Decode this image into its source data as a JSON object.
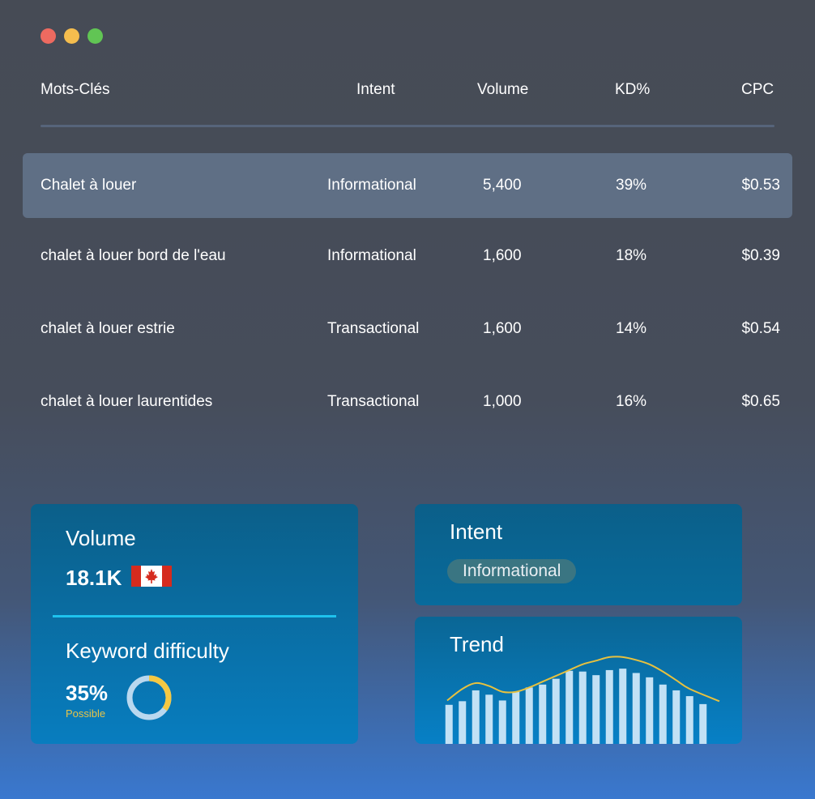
{
  "window": {
    "dots": [
      {
        "name": "close-dot",
        "color": "#ed6a60"
      },
      {
        "name": "minimize-dot",
        "color": "#f5bd4e"
      },
      {
        "name": "maximize-dot",
        "color": "#61c554"
      }
    ]
  },
  "table": {
    "headers": {
      "keyword": "Mots-Clés",
      "intent": "Intent",
      "volume": "Volume",
      "kd": "KD%",
      "cpc": "CPC"
    },
    "rows": [
      {
        "keyword": "Chalet à louer",
        "intent": "Informational",
        "volume": "5,400",
        "kd": "39%",
        "cpc": "$0.53",
        "selected": true
      },
      {
        "keyword": "chalet à louer bord de l'eau",
        "intent": "Informational",
        "volume": "1,600",
        "kd": "18%",
        "cpc": "$0.39",
        "selected": false
      },
      {
        "keyword": "chalet à louer estrie",
        "intent": "Transactional",
        "volume": "1,600",
        "kd": "14%",
        "cpc": "$0.54",
        "selected": false
      },
      {
        "keyword": "chalet à louer laurentides",
        "intent": "Transactional",
        "volume": "1,000",
        "kd": "16%",
        "cpc": "$0.65",
        "selected": false
      }
    ]
  },
  "volume_card": {
    "label": "Volume",
    "value": "18.1K",
    "flag_icon": "canada-flag-icon"
  },
  "difficulty_card": {
    "label": "Keyword difficulty",
    "value": "35%",
    "sublabel": "Possible",
    "percent": 35,
    "ring_color": "#f5c842",
    "track_color": "#b9d8ef"
  },
  "intent_card": {
    "label": "Intent",
    "badge": "Informational"
  },
  "trend_card": {
    "label": "Trend",
    "bar_color": "#c2e1f5",
    "line_color": "#e7c13f",
    "chart_data": {
      "type": "bar",
      "values": [
        54,
        59,
        74,
        68,
        60,
        72,
        78,
        82,
        90,
        101,
        100,
        95,
        102,
        104,
        98,
        92,
        82,
        74,
        66,
        55
      ],
      "trend_line": [
        60,
        76,
        84,
        80,
        72,
        72,
        78,
        86,
        94,
        102,
        110,
        115,
        120,
        120,
        116,
        110,
        100,
        88,
        76,
        59
      ],
      "ylim": [
        0,
        140
      ]
    }
  }
}
